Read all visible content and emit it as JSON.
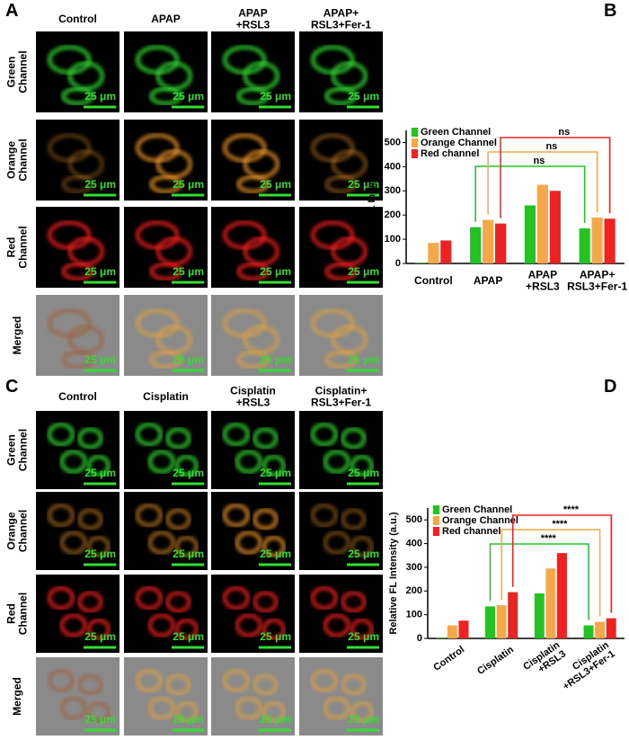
{
  "panels": [
    {
      "letter": "A",
      "columns": [
        "Control",
        "APAP",
        "APAP\n+RSL3",
        "APAP+\nRSL3+Fer-1"
      ],
      "rows": [
        "Green\nChannel",
        "Orange\nChannel",
        "Red\nChannel",
        "Merged"
      ],
      "scale_bar": "25 μm"
    },
    {
      "letter": "C",
      "columns": [
        "Control",
        "Cisplatin",
        "Cisplatin\n+RSL3",
        "Cisplatin+\nRSL3+Fer-1"
      ],
      "rows": [
        "Green\nChannel",
        "Orange\nChannel",
        "Red\nChannel",
        "Merged"
      ],
      "scale_bar": "25 μm"
    }
  ],
  "chart_data": [
    {
      "type": "bar",
      "panel": "B",
      "y_label": "Relative FL Intensity (a.u.)",
      "categories": [
        "Control",
        "APAP",
        "APAP\n+RSL3",
        "APAP+\nRSL3+Fer-1"
      ],
      "series": [
        {
          "name": "Green Channel",
          "color": "#22c322",
          "values": [
            2,
            150,
            240,
            145
          ]
        },
        {
          "name": "Orange Channel",
          "color": "#f5a84a",
          "values": [
            85,
            180,
            325,
            190
          ]
        },
        {
          "name": "Red channel",
          "color": "#ee2222",
          "values": [
            95,
            165,
            300,
            185
          ]
        }
      ],
      "ylim": [
        0,
        550
      ],
      "yticks": [
        0,
        100,
        200,
        300,
        400,
        500
      ],
      "annotations": [
        "ns",
        "ns",
        "ns"
      ]
    },
    {
      "type": "bar",
      "panel": "D",
      "y_label": "Relative FL Intensity (a.u.)",
      "categories": [
        "Control",
        "Cisplatin",
        "Cisplatin\n+RSL3",
        "Cisplatin\n+RSL3+Fer-1"
      ],
      "series": [
        {
          "name": "Green Channel",
          "color": "#22c322",
          "values": [
            2,
            135,
            190,
            55
          ]
        },
        {
          "name": "Orange Channel",
          "color": "#f5a84a",
          "values": [
            55,
            140,
            295,
            70
          ]
        },
        {
          "name": "Red channel",
          "color": "#ee2222",
          "values": [
            75,
            195,
            360,
            85
          ]
        }
      ],
      "ylim": [
        0,
        550
      ],
      "yticks": [
        0,
        100,
        200,
        300,
        400,
        500
      ],
      "annotations": [
        "****",
        "****",
        "****"
      ]
    }
  ]
}
